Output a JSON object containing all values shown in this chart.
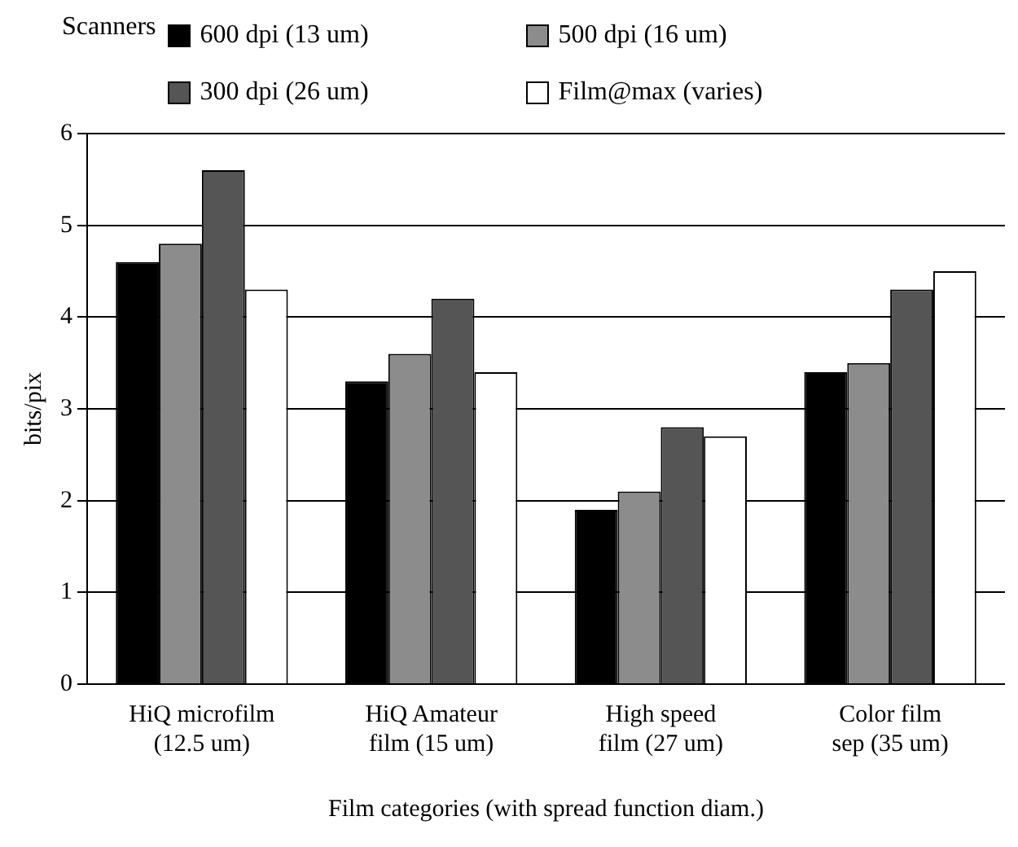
{
  "chart_data": {
    "type": "bar",
    "xlabel": "Film categories (with spread function diam.)",
    "ylabel": "bits/pix",
    "legend_title": "Scanners",
    "categories": [
      "HiQ microfilm\n(12.5 um)",
      "HiQ Amateur\nfilm (15 um)",
      "High speed\nfilm (27 um)",
      "Color film\nsep (35 um)"
    ],
    "series": [
      {
        "name": "600 dpi (13 um)",
        "color": "#000000",
        "values": [
          4.6,
          3.3,
          1.9,
          3.4
        ]
      },
      {
        "name": "500 dpi (16 um)",
        "color": "#8c8c8c",
        "values": [
          4.8,
          3.6,
          2.1,
          3.5
        ]
      },
      {
        "name": "300 dpi (26 um)",
        "color": "#555555",
        "values": [
          5.6,
          4.2,
          2.8,
          4.3
        ]
      },
      {
        "name": "Film@max (varies)",
        "color": "#ffffff",
        "values": [
          4.3,
          3.4,
          2.7,
          4.5
        ]
      }
    ],
    "ylim": [
      0,
      6
    ],
    "yticks": [
      0,
      1,
      2,
      3,
      4,
      5,
      6
    ],
    "grid": "y",
    "legend": "top"
  }
}
